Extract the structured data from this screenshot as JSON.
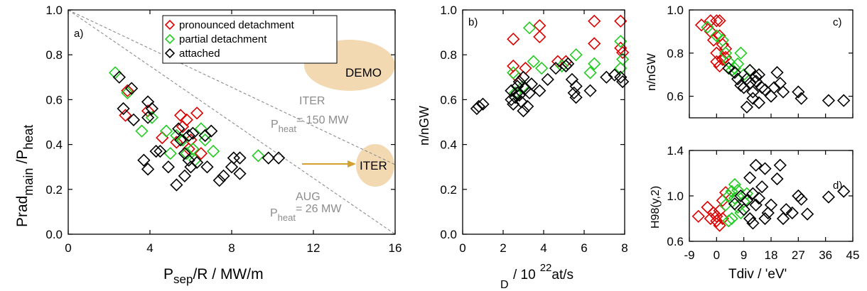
{
  "colors": {
    "pronounced": "#dd0000",
    "partial": "#22cc22",
    "attached": "#000000",
    "annotation_gray": "#8c8c8c",
    "ellipse_fill": "#f2d9b2",
    "arrow": "#d4a030"
  },
  "panel_a": {
    "label": "a)",
    "ylabel_main": "Prad",
    "ylabel_sub": "main",
    "ylabel_sep": "/P",
    "ylabel_sub2": "heat",
    "xlabel_p": "P",
    "xlabel_sub": "sep",
    "xlabel_rest": "/R  /  MW/m",
    "xticks": [
      "0",
      "4",
      "8",
      "12",
      "16"
    ],
    "yticks": [
      "0.0",
      "0.2",
      "0.4",
      "0.6",
      "0.8",
      "1.0"
    ],
    "legend": [
      "pronounced detachment",
      "partial detachment",
      "attached"
    ],
    "demo_label": "DEMO",
    "iter_label": "ITER",
    "iter_line": {
      "name": "ITER",
      "p": "P",
      "sub": "heat",
      "value": "= 150 MW"
    },
    "aug_line": {
      "name": "AUG",
      "p": "P",
      "sub": "heat",
      "value": "= 26 MW"
    }
  },
  "panel_b": {
    "label": "b)",
    "ylabel": "n/nGW",
    "xlabel_d": "D",
    "xlabel_main": "/ 10",
    "xlabel_exp": "22",
    "xlabel_unit": "at/s",
    "xticks": [
      "0",
      "2",
      "4",
      "6",
      "8"
    ],
    "yticks": [
      "0.0",
      "0.2",
      "0.4",
      "0.6",
      "0.8",
      "1.0"
    ]
  },
  "panel_c": {
    "label": "c)",
    "ylabel": "n/nGW",
    "yticks": [
      "0.6",
      "0.8",
      "1.0"
    ]
  },
  "panel_d": {
    "label": "d)",
    "ylabel": "H98(y,2)",
    "xlabel": "Tdiv /  'eV'",
    "xticks": [
      "-9",
      "0",
      "9",
      "18",
      "27",
      "36",
      "45"
    ],
    "yticks": [
      "0.6",
      "1.0",
      "1.4"
    ]
  },
  "chart_data": [
    {
      "type": "scatter",
      "panel": "a)",
      "xlabel": "Psep/R / MW/m",
      "ylabel": "Pradmain/Pheat",
      "xlim": [
        0,
        16
      ],
      "ylim": [
        0,
        1.0
      ],
      "series": [
        {
          "name": "pronounced detachment",
          "points": [
            [
              2.9,
              0.64
            ],
            [
              2.8,
              0.53
            ],
            [
              3.9,
              0.55
            ],
            [
              4.6,
              0.43
            ],
            [
              5.5,
              0.53
            ],
            [
              5.8,
              0.51
            ],
            [
              5.6,
              0.48
            ],
            [
              6.3,
              0.54
            ],
            [
              6.0,
              0.42
            ],
            [
              5.9,
              0.38
            ],
            [
              5.3,
              0.41
            ],
            [
              6.5,
              0.36
            ]
          ]
        },
        {
          "name": "partial detachment",
          "points": [
            [
              2.3,
              0.72
            ],
            [
              2.9,
              0.63
            ],
            [
              3.6,
              0.46
            ],
            [
              4.1,
              0.52
            ],
            [
              4.8,
              0.46
            ],
            [
              5.3,
              0.44
            ],
            [
              5.6,
              0.42
            ],
            [
              6.1,
              0.38
            ],
            [
              6.5,
              0.47
            ],
            [
              7.1,
              0.37
            ],
            [
              6.2,
              0.33
            ],
            [
              5.8,
              0.36
            ],
            [
              9.3,
              0.35
            ],
            [
              6.7,
              0.42
            ],
            [
              5.0,
              0.36
            ]
          ]
        },
        {
          "name": "attached",
          "points": [
            [
              2.5,
              0.7
            ],
            [
              2.7,
              0.56
            ],
            [
              3.2,
              0.51
            ],
            [
              3.1,
              0.65
            ],
            [
              3.9,
              0.59
            ],
            [
              3.9,
              0.52
            ],
            [
              4.1,
              0.56
            ],
            [
              3.7,
              0.33
            ],
            [
              3.9,
              0.29
            ],
            [
              4.5,
              0.37
            ],
            [
              4.3,
              0.37
            ],
            [
              4.9,
              0.3
            ],
            [
              5.3,
              0.22
            ],
            [
              5.7,
              0.36
            ],
            [
              5.9,
              0.44
            ],
            [
              5.4,
              0.47
            ],
            [
              5.5,
              0.42
            ],
            [
              6.1,
              0.45
            ],
            [
              6.7,
              0.44
            ],
            [
              6.3,
              0.32
            ],
            [
              6.8,
              0.3
            ],
            [
              7.4,
              0.24
            ],
            [
              7.6,
              0.26
            ],
            [
              8.4,
              0.27
            ],
            [
              8.1,
              0.34
            ],
            [
              8.4,
              0.34
            ],
            [
              8.0,
              0.3
            ],
            [
              7.0,
              0.46
            ],
            [
              6.0,
              0.3
            ],
            [
              9.8,
              0.34
            ],
            [
              10.3,
              0.34
            ],
            [
              5.7,
              0.26
            ],
            [
              5.9,
              0.33
            ]
          ]
        }
      ]
    },
    {
      "type": "scatter",
      "panel": "b)",
      "xlabel": "D / 10^22 at/s",
      "ylabel": "n/nGW",
      "xlim": [
        0,
        8
      ],
      "ylim": [
        0,
        1.0
      ],
      "series": [
        {
          "name": "pronounced detachment",
          "points": [
            [
              2.5,
              0.87
            ],
            [
              2.5,
              0.75
            ],
            [
              3.8,
              0.93
            ],
            [
              3.8,
              0.88
            ],
            [
              4.7,
              0.77
            ],
            [
              5.1,
              0.77
            ],
            [
              6.5,
              0.95
            ],
            [
              6.5,
              0.85
            ],
            [
              7.8,
              0.95
            ],
            [
              7.8,
              0.83
            ],
            [
              7.9,
              0.81
            ],
            [
              2.6,
              0.71
            ],
            [
              3.1,
              0.74
            ]
          ]
        },
        {
          "name": "partial detachment",
          "points": [
            [
              3.3,
              0.92
            ],
            [
              2.5,
              0.72
            ],
            [
              3.5,
              0.77
            ],
            [
              3.9,
              0.74
            ],
            [
              4.9,
              0.75
            ],
            [
              5.6,
              0.8
            ],
            [
              6.3,
              0.72
            ],
            [
              6.5,
              0.76
            ],
            [
              7.8,
              0.86
            ],
            [
              7.9,
              0.78
            ],
            [
              7.8,
              0.74
            ],
            [
              2.6,
              0.63
            ],
            [
              3.0,
              0.66
            ]
          ]
        },
        {
          "name": "attached",
          "points": [
            [
              0.7,
              0.56
            ],
            [
              0.8,
              0.57
            ],
            [
              1.0,
              0.58
            ],
            [
              2.4,
              0.6
            ],
            [
              2.5,
              0.58
            ],
            [
              2.6,
              0.61
            ],
            [
              2.7,
              0.63
            ],
            [
              2.7,
              0.66
            ],
            [
              2.8,
              0.62
            ],
            [
              2.8,
              0.68
            ],
            [
              2.9,
              0.59
            ],
            [
              3.0,
              0.55
            ],
            [
              3.1,
              0.65
            ],
            [
              3.3,
              0.63
            ],
            [
              3.4,
              0.67
            ],
            [
              3.8,
              0.64
            ],
            [
              4.2,
              0.69
            ],
            [
              4.6,
              0.74
            ],
            [
              5.1,
              0.75
            ],
            [
              5.4,
              0.69
            ],
            [
              5.5,
              0.63
            ],
            [
              5.6,
              0.66
            ],
            [
              5.6,
              0.61
            ],
            [
              6.3,
              0.64
            ],
            [
              7.1,
              0.7
            ],
            [
              7.5,
              0.71
            ],
            [
              7.8,
              0.7
            ],
            [
              7.9,
              0.68
            ],
            [
              2.4,
              0.64
            ],
            [
              3.0,
              0.7
            ],
            [
              3.2,
              0.57
            ],
            [
              5.2,
              0.76
            ]
          ]
        }
      ]
    },
    {
      "type": "scatter",
      "panel": "c)",
      "xlabel": "Tdiv / eV",
      "ylabel": "n/nGW",
      "xlim": [
        -9,
        45
      ],
      "ylim": [
        0.5,
        1.0
      ],
      "series": [
        {
          "name": "pronounced detachment",
          "points": [
            [
              -5,
              0.93
            ],
            [
              -2,
              0.95
            ],
            [
              0,
              0.95
            ],
            [
              1,
              0.95
            ],
            [
              -2,
              0.9
            ],
            [
              1,
              0.88
            ],
            [
              2,
              0.84
            ],
            [
              0,
              0.8
            ],
            [
              3,
              0.82
            ],
            [
              0,
              0.76
            ],
            [
              1,
              0.74
            ],
            [
              2,
              0.77
            ],
            [
              3,
              0.78
            ],
            [
              -1,
              0.86
            ]
          ]
        },
        {
          "name": "partial detachment",
          "points": [
            [
              -3,
              0.92
            ],
            [
              0,
              0.88
            ],
            [
              2,
              0.86
            ],
            [
              3,
              0.8
            ],
            [
              4,
              0.76
            ],
            [
              5,
              0.72
            ],
            [
              7,
              0.75
            ],
            [
              8,
              0.8
            ],
            [
              9,
              0.7
            ],
            [
              6,
              0.73
            ],
            [
              11,
              0.72
            ]
          ]
        },
        {
          "name": "attached",
          "points": [
            [
              4,
              0.73
            ],
            [
              6,
              0.71
            ],
            [
              7,
              0.68
            ],
            [
              8,
              0.65
            ],
            [
              9,
              0.64
            ],
            [
              10,
              0.68
            ],
            [
              11,
              0.66
            ],
            [
              12,
              0.62
            ],
            [
              12,
              0.59
            ],
            [
              13,
              0.67
            ],
            [
              14,
              0.7
            ],
            [
              15,
              0.64
            ],
            [
              16,
              0.63
            ],
            [
              18,
              0.6
            ],
            [
              19,
              0.64
            ],
            [
              20,
              0.71
            ],
            [
              21,
              0.66
            ],
            [
              22,
              0.62
            ],
            [
              27,
              0.62
            ],
            [
              28,
              0.59
            ],
            [
              10,
              0.55
            ],
            [
              14,
              0.57
            ],
            [
              37,
              0.58
            ],
            [
              42,
              0.58
            ],
            [
              11,
              0.72
            ],
            [
              13,
              0.69
            ]
          ]
        }
      ]
    },
    {
      "type": "scatter",
      "panel": "d)",
      "xlabel": "Tdiv / eV",
      "ylabel": "H98(y,2)",
      "xlim": [
        -9,
        45
      ],
      "ylim": [
        0.6,
        1.4
      ],
      "series": [
        {
          "name": "pronounced detachment",
          "points": [
            [
              -6,
              0.82
            ],
            [
              -3,
              0.9
            ],
            [
              -1,
              0.85
            ],
            [
              0,
              0.78
            ],
            [
              1,
              0.74
            ],
            [
              2,
              0.96
            ],
            [
              3,
              1.03
            ],
            [
              1,
              0.87
            ],
            [
              0,
              0.82
            ],
            [
              -2,
              0.8
            ],
            [
              2,
              0.8
            ]
          ]
        },
        {
          "name": "partial detachment",
          "points": [
            [
              3,
              0.92
            ],
            [
              4,
              1.0
            ],
            [
              5,
              1.04
            ],
            [
              6,
              0.98
            ],
            [
              7,
              0.9
            ],
            [
              8,
              0.85
            ],
            [
              5,
              0.8
            ],
            [
              7,
              1.05
            ],
            [
              9,
              0.95
            ],
            [
              10,
              1.02
            ],
            [
              6,
              1.1
            ],
            [
              4,
              0.78
            ]
          ]
        },
        {
          "name": "attached",
          "points": [
            [
              6,
              0.93
            ],
            [
              8,
              1.0
            ],
            [
              9,
              0.88
            ],
            [
              10,
              0.96
            ],
            [
              11,
              0.8
            ],
            [
              11,
              1.16
            ],
            [
              12,
              1.02
            ],
            [
              13,
              1.27
            ],
            [
              13,
              0.92
            ],
            [
              14,
              0.98
            ],
            [
              15,
              1.08
            ],
            [
              16,
              1.24
            ],
            [
              17,
              0.85
            ],
            [
              18,
              0.92
            ],
            [
              20,
              1.15
            ],
            [
              21,
              1.27
            ],
            [
              22,
              0.8
            ],
            [
              23,
              0.88
            ],
            [
              27,
              1.0
            ],
            [
              28,
              0.97
            ],
            [
              30,
              0.84
            ],
            [
              37,
              0.99
            ],
            [
              42,
              1.04
            ],
            [
              12,
              0.76
            ],
            [
              16,
              0.8
            ],
            [
              25,
              0.85
            ]
          ]
        }
      ]
    }
  ]
}
